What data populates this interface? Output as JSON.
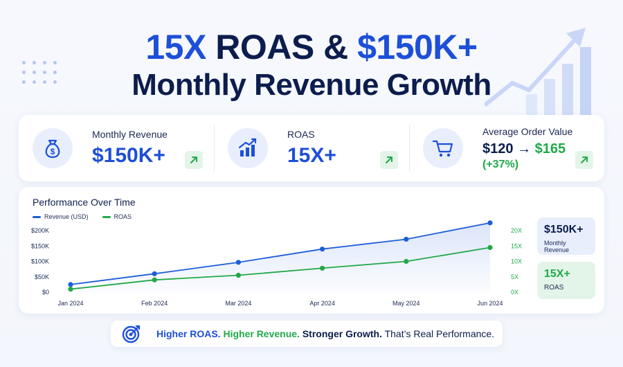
{
  "headline": {
    "part1": "15X",
    "part2": " ROAS & ",
    "part3": "$150K+",
    "line2": "Monthly Revenue Growth"
  },
  "kpis": {
    "revenue": {
      "label": "Monthly Revenue",
      "value": "$150K+",
      "icon": "money-bag-icon"
    },
    "roas": {
      "label": "ROAS",
      "value": "15X+",
      "icon": "bar-chart-icon"
    },
    "aov": {
      "label": "Average Order Value",
      "from": "$120",
      "arrow": "→",
      "to": "$165",
      "pct": "(+37%)",
      "icon": "shopping-cart-icon"
    }
  },
  "side": {
    "revenue_value": "$150K+",
    "revenue_label": "Monthly Revenue",
    "roas_value": "15X+",
    "roas_label": "ROAS"
  },
  "tagline": {
    "t1": "Higher ROAS.",
    "t2": " Higher Revenue.",
    "t3": " Stronger Growth.",
    "t4": " That’s Real Performance."
  },
  "colors": {
    "revenue": "#1d5ed8",
    "roas": "#22a847",
    "brand_blue": "#1d4fd8",
    "navy": "#0c1d4d"
  },
  "chart_data": {
    "type": "line",
    "title": "Performance Over Time",
    "x": [
      "Jan 2024",
      "Feb 2024",
      "Mar 2024",
      "Apr 2024",
      "May 2024",
      "Jun 2024"
    ],
    "series": [
      {
        "name": "Revenue (USD)",
        "axis": "left",
        "values": [
          25000,
          60000,
          97000,
          140000,
          172000,
          225000
        ]
      },
      {
        "name": "ROAS",
        "axis": "right",
        "values": [
          1,
          4,
          5.5,
          7.8,
          10,
          14.5
        ]
      }
    ],
    "y_left": {
      "ticks": [
        "$0",
        "$50K",
        "$100K",
        "$150K",
        "$200K"
      ],
      "tick_values": [
        0,
        50000,
        100000,
        150000,
        200000
      ],
      "range": [
        0,
        200000
      ]
    },
    "y_right": {
      "ticks": [
        "0X",
        "5X",
        "10X",
        "15X",
        "20X"
      ],
      "tick_values": [
        0,
        5,
        10,
        15,
        20
      ],
      "range": [
        0,
        20
      ]
    },
    "legend": "top-left",
    "grid": false
  }
}
